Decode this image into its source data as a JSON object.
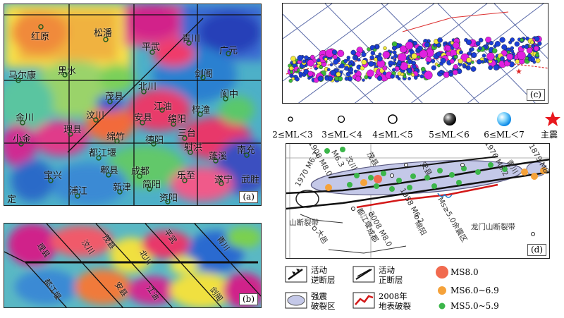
{
  "panel_a": {
    "label": "(a)",
    "cities": [
      {
        "id": "hongyuan",
        "name": "红原"
      },
      {
        "id": "songpan",
        "name": "松潘"
      },
      {
        "id": "pingwu",
        "name": "平武"
      },
      {
        "id": "qingchuan",
        "name": "青川"
      },
      {
        "id": "guangyuan",
        "name": "广元"
      },
      {
        "id": "maerkang",
        "name": "马尔康"
      },
      {
        "id": "heishui",
        "name": "黑水"
      },
      {
        "id": "jiange",
        "name": "剑阁"
      },
      {
        "id": "beichuan",
        "name": "北川"
      },
      {
        "id": "maoxian",
        "name": "茂县"
      },
      {
        "id": "langzhong",
        "name": "阆中"
      },
      {
        "id": "jiangyou",
        "name": "江油"
      },
      {
        "id": "wenchuan",
        "name": "汶川"
      },
      {
        "id": "anxian",
        "name": "安县"
      },
      {
        "id": "mianyang",
        "name": "绵阳"
      },
      {
        "id": "zitong",
        "name": "梓潼"
      },
      {
        "id": "jinchuan",
        "name": "金川"
      },
      {
        "id": "lixian",
        "name": "理县"
      },
      {
        "id": "mianzhu",
        "name": "绵竹"
      },
      {
        "id": "deyang",
        "name": "德阳"
      },
      {
        "id": "santai",
        "name": "三台"
      },
      {
        "id": "xiaojin",
        "name": "小金"
      },
      {
        "id": "dujiangyan",
        "name": "都江堰"
      },
      {
        "id": "shehong",
        "name": "射洪"
      },
      {
        "id": "pengxi",
        "name": "蓬溪"
      },
      {
        "id": "nanchong",
        "name": "南充"
      },
      {
        "id": "pixian",
        "name": "郫县"
      },
      {
        "id": "chengdu",
        "name": "成都"
      },
      {
        "id": "baoxing",
        "name": "宝兴"
      },
      {
        "id": "lezhi",
        "name": "乐至"
      },
      {
        "id": "suining",
        "name": "遂宁"
      },
      {
        "id": "wusheng",
        "name": "武胜"
      },
      {
        "id": "pujiang",
        "name": "浦江"
      },
      {
        "id": "xinjin",
        "name": "新津"
      },
      {
        "id": "jianyang",
        "name": "简阳"
      },
      {
        "id": "ziyang",
        "name": "资阳"
      },
      {
        "id": "ding",
        "name": "定"
      }
    ]
  },
  "panel_b": {
    "label": "(b)",
    "cities": [
      {
        "id": "lixian",
        "name": "理县"
      },
      {
        "id": "wenchuan",
        "name": "汶川"
      },
      {
        "id": "maoxian",
        "name": "茂县"
      },
      {
        "id": "beichuan",
        "name": "北川"
      },
      {
        "id": "pingwu",
        "name": "平武"
      },
      {
        "id": "qingchuan",
        "name": "青川"
      },
      {
        "id": "dujiangyan",
        "name": "都江堰"
      },
      {
        "id": "anxian",
        "name": "安县"
      },
      {
        "id": "jiangyou",
        "name": "江油"
      },
      {
        "id": "jiange",
        "name": "剑阁"
      }
    ]
  },
  "panel_c": {
    "label": "(c)"
  },
  "magnitude_legend": [
    {
      "label": "2≤ML＜3",
      "color": "#ffffff"
    },
    {
      "label": "3≤ML＜4",
      "color": "#ffffff"
    },
    {
      "label": "4≤ML＜5",
      "color": "#ffffff"
    },
    {
      "label": "5≤ML＜6",
      "color": "#222222"
    },
    {
      "label": "6≤ML＜7",
      "color": "#29aaf2"
    },
    {
      "label": "主震",
      "color": "#e8181e"
    }
  ],
  "panel_d": {
    "label": "(d)",
    "labels": {
      "m1970": "1970 M6.2",
      "m1976": "1976 M6.2",
      "m1879": "1879 M8",
      "m1958": "1958 M6.2",
      "m2008": "2008 M8.0",
      "m1908": "1908 M8.0",
      "m63": "M6.3",
      "wenchuan": "汶川",
      "maoxian": "茂县",
      "anxian": "安县",
      "qingchuan": "青川",
      "shanduan": "山断裂带",
      "dujiangyan": "都江堰",
      "chengdu": "成都",
      "dayi": "大邑",
      "mianyang": "绵阳",
      "longmen": "龙门山断裂带",
      "ms50": "Ms≥5.0余震区"
    }
  },
  "fault_legend": [
    {
      "id": "thrust",
      "line1": "活动",
      "line2": "逆断层"
    },
    {
      "id": "normal",
      "line1": "活动",
      "line2": "正断层"
    },
    {
      "id": "rupture_zone",
      "line1": "强震",
      "line2": "破裂区"
    },
    {
      "id": "surface",
      "line1": "2008年",
      "line2": "地表破裂"
    }
  ],
  "ms_legend": [
    {
      "label": "MS8.0",
      "color": "#f16a4f"
    },
    {
      "label": "MS6.0~6.9",
      "color": "#f5a23a"
    },
    {
      "label": "MS5.0~5.9",
      "color": "#3cb64a"
    }
  ]
}
